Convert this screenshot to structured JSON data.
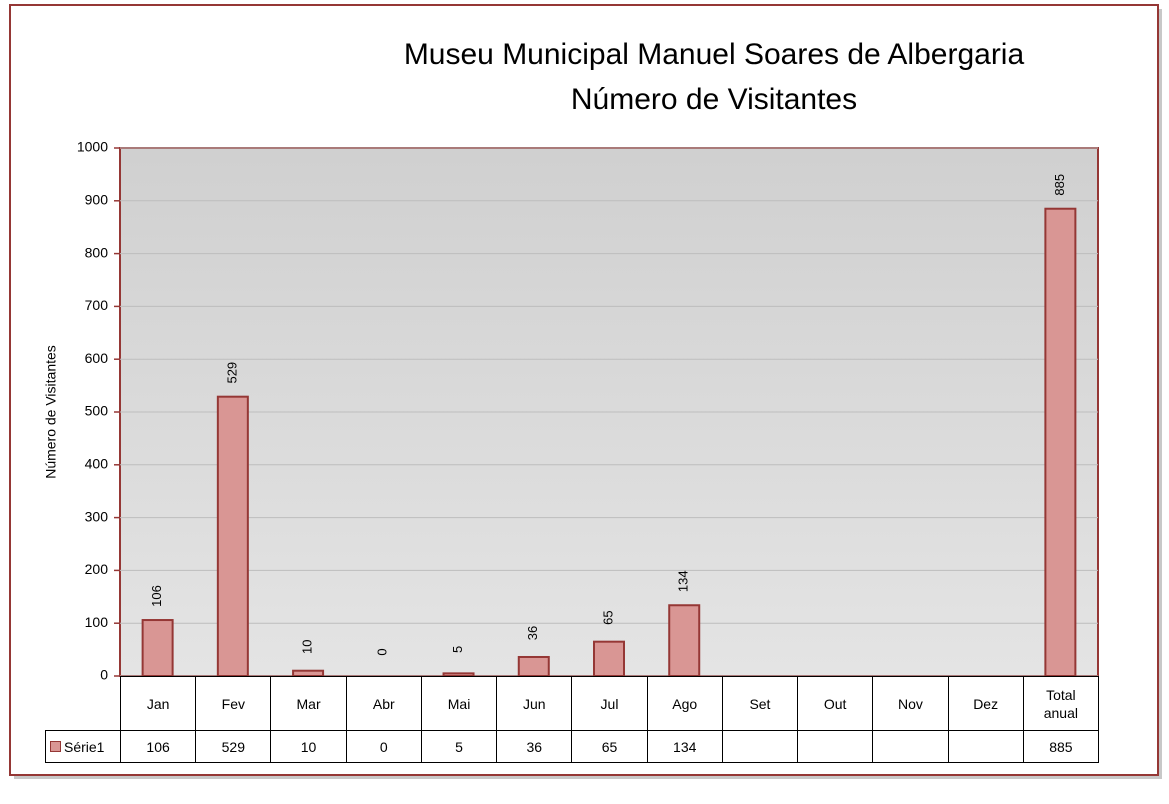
{
  "chart_data": {
    "type": "bar",
    "title": "Museu Municipal Manuel Soares de Albergaria",
    "subtitle": "Número de Visitantes",
    "y_label": "Número de Visitantes",
    "categories": [
      "Jan",
      "Fev",
      "Mar",
      "Abr",
      "Mai",
      "Jun",
      "Jul",
      "Ago",
      "Set",
      "Out",
      "Nov",
      "Dez",
      "Total anual"
    ],
    "series": [
      {
        "name": "Série1",
        "color": "#d99694",
        "edge_color": "#953735",
        "values": [
          106,
          529,
          10,
          0,
          5,
          36,
          65,
          134,
          null,
          null,
          null,
          null,
          885
        ]
      }
    ],
    "ylim": [
      0,
      1000
    ],
    "yticks": [
      0,
      100,
      200,
      300,
      400,
      500,
      600,
      700,
      800,
      900,
      1000
    ],
    "grid": true,
    "data_table": true
  }
}
